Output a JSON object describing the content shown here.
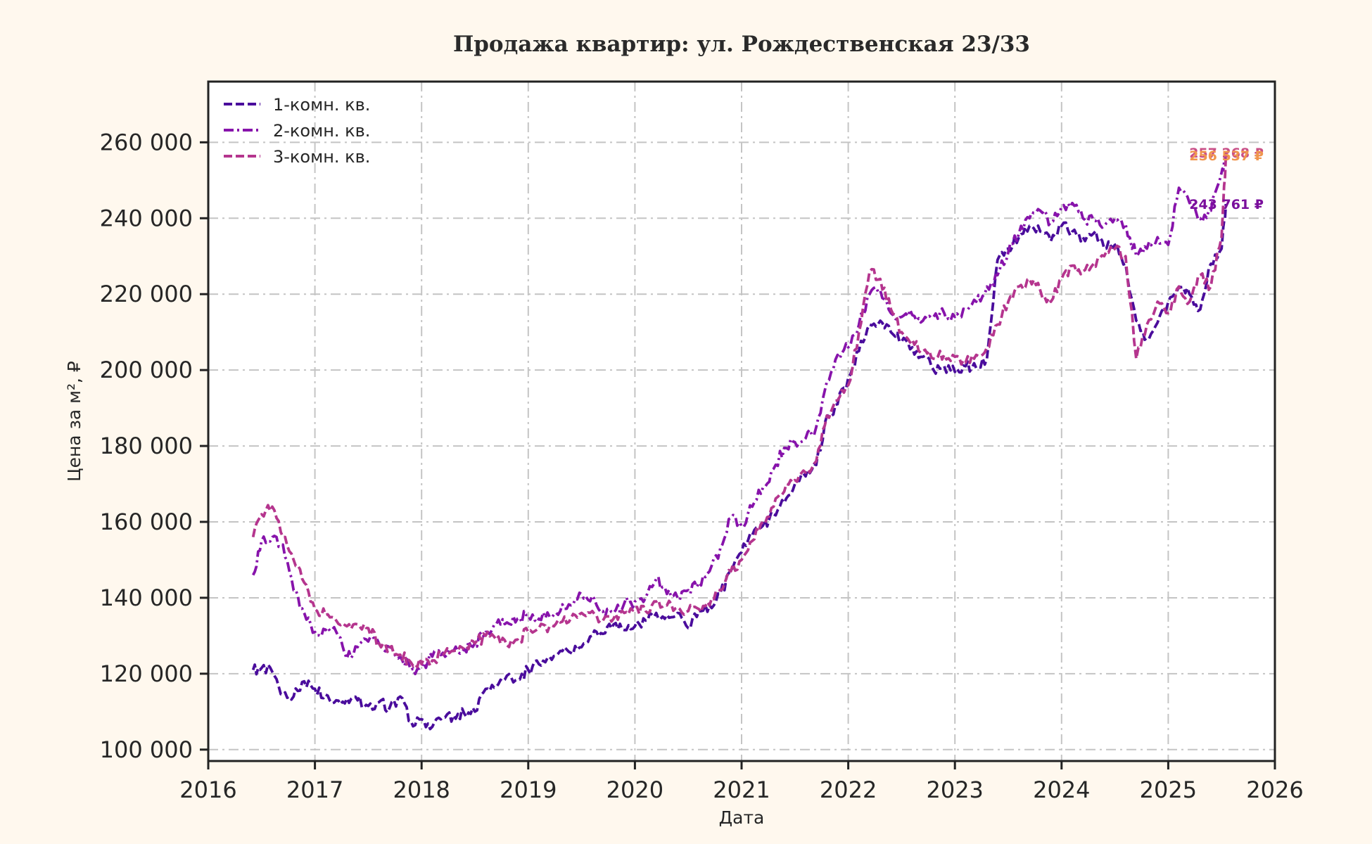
{
  "chart_data": {
    "type": "line",
    "title": "Продажа квартир: ул. Рождественская 23/33",
    "xlabel": "Дата",
    "ylabel": "Цена за м², ₽",
    "xlim": [
      2016.0,
      2026.0
    ],
    "ylim": [
      97000,
      276000
    ],
    "x_ticks": [
      2016,
      2017,
      2018,
      2019,
      2020,
      2021,
      2022,
      2023,
      2024,
      2025,
      2026
    ],
    "x_tick_labels": [
      "2016",
      "2017",
      "2018",
      "2019",
      "2020",
      "2021",
      "2022",
      "2023",
      "2024",
      "2025",
      "2026"
    ],
    "y_ticks": [
      100000,
      120000,
      140000,
      160000,
      180000,
      200000,
      220000,
      240000,
      260000
    ],
    "y_tick_labels": [
      "100 000",
      "120 000",
      "140 000",
      "160 000",
      "180 000",
      "200 000",
      "220 000",
      "240 000",
      "260 000"
    ],
    "grid": true,
    "legend_position": "top-left",
    "series": [
      {
        "name": "1-комн. кв.",
        "color": "#4a0c9c",
        "dash": "dashed",
        "end_label": "243 761 ₽",
        "end_label_value": 243761,
        "x": [
          2016.42,
          2016.5,
          2016.6,
          2016.7,
          2016.8,
          2016.9,
          2017.0,
          2017.1,
          2017.2,
          2017.3,
          2017.4,
          2017.5,
          2017.6,
          2017.7,
          2017.8,
          2017.9,
          2018.0,
          2018.1,
          2018.2,
          2018.3,
          2018.4,
          2018.5,
          2018.6,
          2018.7,
          2018.8,
          2018.9,
          2019.0,
          2019.1,
          2019.2,
          2019.3,
          2019.4,
          2019.5,
          2019.6,
          2019.7,
          2019.8,
          2019.9,
          2020.0,
          2020.1,
          2020.2,
          2020.3,
          2020.4,
          2020.5,
          2020.6,
          2020.7,
          2020.8,
          2020.9,
          2021.0,
          2021.1,
          2021.2,
          2021.3,
          2021.4,
          2021.5,
          2021.6,
          2021.7,
          2021.8,
          2021.9,
          2022.0,
          2022.1,
          2022.2,
          2022.3,
          2022.4,
          2022.5,
          2022.6,
          2022.7,
          2022.8,
          2022.9,
          2023.0,
          2023.1,
          2023.2,
          2023.3,
          2023.4,
          2023.5,
          2023.6,
          2023.7,
          2023.8,
          2023.9,
          2024.0,
          2024.1,
          2024.2,
          2024.3,
          2024.4,
          2024.5,
          2024.6,
          2024.7,
          2024.8,
          2024.9,
          2025.0,
          2025.1,
          2025.2,
          2025.3,
          2025.4,
          2025.5,
          2025.54
        ],
        "y": [
          121000,
          121500,
          120500,
          114500,
          114000,
          118000,
          116000,
          114500,
          113000,
          113500,
          113000,
          111500,
          112500,
          111000,
          114000,
          107500,
          108000,
          106000,
          108500,
          109000,
          109500,
          110000,
          116000,
          116500,
          119500,
          118500,
          121000,
          122500,
          124500,
          126000,
          125500,
          127000,
          130000,
          130500,
          133000,
          131500,
          132500,
          134000,
          136000,
          135500,
          136000,
          132000,
          136500,
          138000,
          141000,
          147000,
          152000,
          156500,
          159000,
          162000,
          165000,
          170000,
          172000,
          175000,
          188000,
          191000,
          198000,
          205000,
          212000,
          213000,
          210000,
          207500,
          206000,
          203500,
          200000,
          201000,
          199500,
          201000,
          200500,
          203000,
          229000,
          232000,
          235000,
          238000,
          236500,
          234000,
          238000,
          236500,
          235000,
          236000,
          232000,
          233000,
          228000,
          213000,
          208500,
          212500,
          218000,
          222000,
          220000,
          216000,
          228000,
          232000,
          243761
        ]
      },
      {
        "name": "2-комн. кв.",
        "color": "#8713ab",
        "dash": "dash-dot",
        "end_label": "257 268 ₽",
        "end_label_value": 257268,
        "x": [
          2016.42,
          2016.5,
          2016.6,
          2016.7,
          2016.8,
          2016.9,
          2017.0,
          2017.1,
          2017.2,
          2017.3,
          2017.4,
          2017.5,
          2017.6,
          2017.7,
          2017.8,
          2017.9,
          2018.0,
          2018.1,
          2018.2,
          2018.3,
          2018.4,
          2018.5,
          2018.6,
          2018.7,
          2018.8,
          2018.9,
          2019.0,
          2019.1,
          2019.2,
          2019.3,
          2019.4,
          2019.5,
          2019.6,
          2019.7,
          2019.8,
          2019.9,
          2020.0,
          2020.1,
          2020.2,
          2020.3,
          2020.4,
          2020.5,
          2020.6,
          2020.7,
          2020.8,
          2020.9,
          2021.0,
          2021.1,
          2021.2,
          2021.3,
          2021.4,
          2021.5,
          2021.6,
          2021.7,
          2021.8,
          2021.9,
          2022.0,
          2022.1,
          2022.2,
          2022.3,
          2022.4,
          2022.5,
          2022.6,
          2022.7,
          2022.8,
          2022.9,
          2023.0,
          2023.1,
          2023.2,
          2023.3,
          2023.4,
          2023.5,
          2023.6,
          2023.7,
          2023.8,
          2023.9,
          2024.0,
          2024.1,
          2024.2,
          2024.3,
          2024.4,
          2024.5,
          2024.6,
          2024.7,
          2024.8,
          2024.9,
          2025.0,
          2025.1,
          2025.2,
          2025.3,
          2025.4,
          2025.5,
          2025.54
        ],
        "y": [
          146000,
          155000,
          156000,
          154000,
          142000,
          136000,
          131000,
          131500,
          131000,
          124000,
          127000,
          128500,
          128000,
          127000,
          124500,
          121000,
          122000,
          124500,
          125500,
          126000,
          126500,
          128000,
          131000,
          133000,
          133500,
          134500,
          135500,
          134500,
          135000,
          136500,
          138000,
          141000,
          140500,
          136500,
          136000,
          138500,
          139000,
          140000,
          145000,
          141000,
          140000,
          142000,
          144000,
          147000,
          153000,
          161000,
          159000,
          164000,
          169000,
          174000,
          179500,
          181000,
          182000,
          185000,
          197000,
          204000,
          206000,
          212000,
          220000,
          221000,
          215000,
          214000,
          214500,
          213000,
          214000,
          215000,
          214000,
          216000,
          218000,
          222000,
          225000,
          231000,
          236000,
          240000,
          242000,
          239000,
          243000,
          244000,
          240000,
          239500,
          238000,
          240000,
          238500,
          230000,
          232000,
          235000,
          233000,
          248000,
          244000,
          240000,
          242000,
          252000,
          257268
        ]
      },
      {
        "name": "3-комн. кв.",
        "color": "#b5358e",
        "dash": "dashed",
        "end_label": "256 537 ₽",
        "end_label_value": 256537,
        "x": [
          2016.42,
          2016.5,
          2016.6,
          2016.7,
          2016.8,
          2016.9,
          2017.0,
          2017.1,
          2017.2,
          2017.3,
          2017.4,
          2017.5,
          2017.6,
          2017.7,
          2017.8,
          2017.9,
          2018.0,
          2018.1,
          2018.2,
          2018.3,
          2018.4,
          2018.5,
          2018.6,
          2018.7,
          2018.8,
          2018.9,
          2019.0,
          2019.1,
          2019.2,
          2019.3,
          2019.4,
          2019.5,
          2019.6,
          2019.7,
          2019.8,
          2019.9,
          2020.0,
          2020.1,
          2020.2,
          2020.3,
          2020.4,
          2020.5,
          2020.6,
          2020.7,
          2020.8,
          2020.9,
          2021.0,
          2021.1,
          2021.2,
          2021.3,
          2021.4,
          2021.5,
          2021.6,
          2021.7,
          2021.8,
          2021.9,
          2022.0,
          2022.1,
          2022.2,
          2022.3,
          2022.4,
          2022.5,
          2022.6,
          2022.7,
          2022.8,
          2022.9,
          2023.0,
          2023.1,
          2023.2,
          2023.3,
          2023.4,
          2023.5,
          2023.6,
          2023.7,
          2023.8,
          2023.9,
          2024.0,
          2024.1,
          2024.2,
          2024.3,
          2024.4,
          2024.5,
          2024.6,
          2024.7,
          2024.8,
          2024.9,
          2025.0,
          2025.1,
          2025.2,
          2025.3,
          2025.4,
          2025.5,
          2025.54
        ],
        "y": [
          156000,
          162000,
          164000,
          156000,
          150000,
          144000,
          137000,
          135500,
          134000,
          132500,
          133000,
          132000,
          128000,
          127000,
          125000,
          123000,
          122500,
          123500,
          125000,
          126000,
          126500,
          128000,
          130000,
          129000,
          127500,
          129000,
          131000,
          132000,
          132500,
          133500,
          134500,
          136000,
          136500,
          134000,
          134500,
          136000,
          137500,
          136500,
          139000,
          138000,
          137500,
          136500,
          137000,
          138000,
          142000,
          147000,
          150000,
          155000,
          160000,
          164000,
          168000,
          171000,
          173000,
          176000,
          188000,
          192000,
          196000,
          210000,
          226000,
          224000,
          216000,
          210000,
          208000,
          205000,
          203000,
          204000,
          203500,
          202000,
          204000,
          206000,
          212000,
          218000,
          222000,
          224000,
          221000,
          218000,
          224000,
          227500,
          226000,
          228000,
          230000,
          232000,
          230000,
          203000,
          212000,
          218000,
          215000,
          222000,
          218000,
          225000,
          222000,
          235000,
          256537
        ]
      }
    ]
  }
}
